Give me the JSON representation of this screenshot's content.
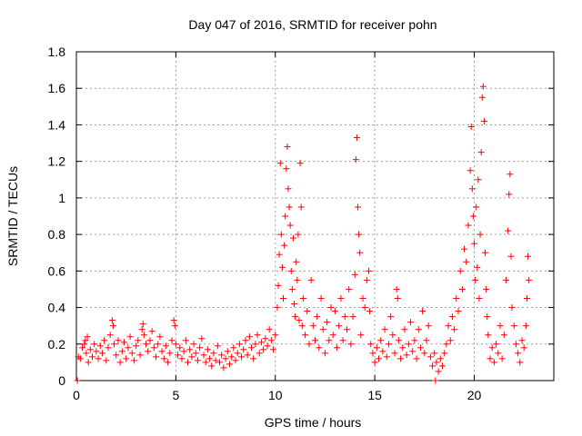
{
  "chart_data": {
    "type": "scatter",
    "title": "Day 047 of 2016, SRMTID for receiver pohn",
    "xlabel": "GPS time / hours",
    "ylabel": "SRMTID / TECUs",
    "xlim": [
      0,
      24
    ],
    "ylim": [
      0,
      1.8
    ],
    "xticks": [
      0,
      5,
      10,
      15,
      20
    ],
    "yticks": [
      0,
      0.2,
      0.4,
      0.6,
      0.8,
      1,
      1.2,
      1.4,
      1.6,
      1.8
    ],
    "ytick_labels": [
      "0",
      "0.2",
      "0.4",
      "0.6",
      "0.8",
      "1",
      "1.2",
      "1.4",
      "1.6",
      "1.8"
    ],
    "grid": true,
    "marker": "+",
    "series": [
      {
        "name": "SRMTID",
        "color": "#ff0000",
        "points": [
          [
            0.05,
            0.0
          ],
          [
            0.1,
            0.13
          ],
          [
            0.2,
            0.12
          ],
          [
            0.3,
            0.18
          ],
          [
            0.4,
            0.2
          ],
          [
            0.45,
            0.22
          ],
          [
            0.5,
            0.15
          ],
          [
            0.55,
            0.24
          ],
          [
            0.6,
            0.1
          ],
          [
            0.7,
            0.17
          ],
          [
            0.8,
            0.13
          ],
          [
            0.9,
            0.2
          ],
          [
            1.0,
            0.16
          ],
          [
            1.1,
            0.12
          ],
          [
            1.2,
            0.19
          ],
          [
            1.3,
            0.15
          ],
          [
            1.4,
            0.22
          ],
          [
            1.5,
            0.11
          ],
          [
            1.6,
            0.18
          ],
          [
            1.7,
            0.25
          ],
          [
            1.8,
            0.33
          ],
          [
            1.85,
            0.3
          ],
          [
            1.9,
            0.2
          ],
          [
            2.0,
            0.14
          ],
          [
            2.1,
            0.22
          ],
          [
            2.2,
            0.1
          ],
          [
            2.3,
            0.16
          ],
          [
            2.4,
            0.21
          ],
          [
            2.5,
            0.12
          ],
          [
            2.6,
            0.18
          ],
          [
            2.7,
            0.24
          ],
          [
            2.8,
            0.15
          ],
          [
            2.9,
            0.11
          ],
          [
            3.0,
            0.19
          ],
          [
            3.1,
            0.22
          ],
          [
            3.2,
            0.14
          ],
          [
            3.3,
            0.28
          ],
          [
            3.35,
            0.31
          ],
          [
            3.4,
            0.25
          ],
          [
            3.5,
            0.2
          ],
          [
            3.6,
            0.16
          ],
          [
            3.7,
            0.22
          ],
          [
            3.8,
            0.27
          ],
          [
            3.9,
            0.18
          ],
          [
            4.0,
            0.13
          ],
          [
            4.1,
            0.2
          ],
          [
            4.2,
            0.24
          ],
          [
            4.3,
            0.16
          ],
          [
            4.4,
            0.12
          ],
          [
            4.5,
            0.19
          ],
          [
            4.6,
            0.1
          ],
          [
            4.7,
            0.15
          ],
          [
            4.8,
            0.22
          ],
          [
            4.9,
            0.33
          ],
          [
            4.95,
            0.3
          ],
          [
            5.0,
            0.2
          ],
          [
            5.1,
            0.14
          ],
          [
            5.2,
            0.18
          ],
          [
            5.3,
            0.12
          ],
          [
            5.4,
            0.16
          ],
          [
            5.5,
            0.22
          ],
          [
            5.6,
            0.1
          ],
          [
            5.7,
            0.17
          ],
          [
            5.8,
            0.13
          ],
          [
            5.9,
            0.2
          ],
          [
            6.0,
            0.15
          ],
          [
            6.1,
            0.11
          ],
          [
            6.2,
            0.18
          ],
          [
            6.3,
            0.23
          ],
          [
            6.4,
            0.14
          ],
          [
            6.5,
            0.1
          ],
          [
            6.6,
            0.17
          ],
          [
            6.7,
            0.12
          ],
          [
            6.8,
            0.08
          ],
          [
            6.9,
            0.15
          ],
          [
            7.0,
            0.11
          ],
          [
            7.1,
            0.19
          ],
          [
            7.2,
            0.1
          ],
          [
            7.3,
            0.14
          ],
          [
            7.4,
            0.07
          ],
          [
            7.5,
            0.12
          ],
          [
            7.6,
            0.16
          ],
          [
            7.7,
            0.09
          ],
          [
            7.8,
            0.13
          ],
          [
            7.9,
            0.18
          ],
          [
            8.0,
            0.11
          ],
          [
            8.1,
            0.15
          ],
          [
            8.2,
            0.2
          ],
          [
            8.3,
            0.13
          ],
          [
            8.4,
            0.17
          ],
          [
            8.5,
            0.22
          ],
          [
            8.6,
            0.14
          ],
          [
            8.7,
            0.24
          ],
          [
            8.8,
            0.18
          ],
          [
            8.9,
            0.12
          ],
          [
            9.0,
            0.2
          ],
          [
            9.1,
            0.25
          ],
          [
            9.2,
            0.15
          ],
          [
            9.3,
            0.21
          ],
          [
            9.4,
            0.17
          ],
          [
            9.5,
            0.23
          ],
          [
            9.6,
            0.19
          ],
          [
            9.7,
            0.28
          ],
          [
            9.8,
            0.22
          ],
          [
            9.9,
            0.17
          ],
          [
            10.0,
            0.25
          ],
          [
            10.1,
            0.4
          ],
          [
            10.15,
            0.52
          ],
          [
            10.2,
            0.69
          ],
          [
            10.25,
            1.19
          ],
          [
            10.3,
            0.8
          ],
          [
            10.35,
            0.62
          ],
          [
            10.4,
            0.45
          ],
          [
            10.45,
            0.74
          ],
          [
            10.5,
            0.9
          ],
          [
            10.55,
            1.16
          ],
          [
            10.6,
            1.28
          ],
          [
            10.65,
            1.05
          ],
          [
            10.7,
            0.95
          ],
          [
            10.75,
            0.85
          ],
          [
            10.8,
            0.6
          ],
          [
            10.85,
            0.5
          ],
          [
            10.9,
            0.78
          ],
          [
            10.95,
            0.42
          ],
          [
            11.0,
            0.35
          ],
          [
            11.05,
            0.65
          ],
          [
            11.1,
            0.55
          ],
          [
            11.15,
            0.8
          ],
          [
            11.2,
            0.33
          ],
          [
            11.25,
            1.19
          ],
          [
            11.3,
            0.95
          ],
          [
            11.35,
            0.3
          ],
          [
            11.4,
            0.45
          ],
          [
            11.5,
            0.25
          ],
          [
            11.6,
            0.38
          ],
          [
            11.7,
            0.2
          ],
          [
            11.8,
            0.55
          ],
          [
            11.9,
            0.3
          ],
          [
            12.0,
            0.22
          ],
          [
            12.1,
            0.35
          ],
          [
            12.2,
            0.18
          ],
          [
            12.3,
            0.45
          ],
          [
            12.4,
            0.28
          ],
          [
            12.5,
            0.15
          ],
          [
            12.6,
            0.32
          ],
          [
            12.7,
            0.22
          ],
          [
            12.8,
            0.4
          ],
          [
            12.9,
            0.25
          ],
          [
            13.0,
            0.38
          ],
          [
            13.1,
            0.18
          ],
          [
            13.2,
            0.3
          ],
          [
            13.3,
            0.45
          ],
          [
            13.4,
            0.22
          ],
          [
            13.5,
            0.35
          ],
          [
            13.6,
            0.28
          ],
          [
            13.7,
            0.5
          ],
          [
            13.8,
            0.2
          ],
          [
            13.9,
            0.35
          ],
          [
            14.0,
            0.58
          ],
          [
            14.05,
            1.21
          ],
          [
            14.1,
            1.33
          ],
          [
            14.15,
            0.95
          ],
          [
            14.2,
            0.8
          ],
          [
            14.25,
            0.7
          ],
          [
            14.3,
            0.25
          ],
          [
            14.4,
            0.45
          ],
          [
            14.5,
            0.4
          ],
          [
            14.6,
            0.55
          ],
          [
            14.7,
            0.6
          ],
          [
            14.75,
            0.38
          ],
          [
            14.8,
            0.2
          ],
          [
            14.9,
            0.15
          ],
          [
            15.0,
            0.1
          ],
          [
            15.1,
            0.18
          ],
          [
            15.2,
            0.12
          ],
          [
            15.3,
            0.22
          ],
          [
            15.4,
            0.16
          ],
          [
            15.5,
            0.28
          ],
          [
            15.6,
            0.13
          ],
          [
            15.7,
            0.2
          ],
          [
            15.8,
            0.35
          ],
          [
            15.9,
            0.25
          ],
          [
            16.0,
            0.15
          ],
          [
            16.1,
            0.5
          ],
          [
            16.15,
            0.45
          ],
          [
            16.2,
            0.22
          ],
          [
            16.3,
            0.12
          ],
          [
            16.4,
            0.18
          ],
          [
            16.5,
            0.28
          ],
          [
            16.6,
            0.14
          ],
          [
            16.7,
            0.2
          ],
          [
            16.8,
            0.32
          ],
          [
            16.9,
            0.16
          ],
          [
            17.0,
            0.22
          ],
          [
            17.1,
            0.12
          ],
          [
            17.2,
            0.28
          ],
          [
            17.3,
            0.18
          ],
          [
            17.4,
            0.38
          ],
          [
            17.5,
            0.15
          ],
          [
            17.6,
            0.22
          ],
          [
            17.7,
            0.3
          ],
          [
            17.8,
            0.13
          ],
          [
            17.9,
            0.08
          ],
          [
            18.0,
            0.15
          ],
          [
            18.05,
            0.0
          ],
          [
            18.1,
            0.1
          ],
          [
            18.2,
            0.05
          ],
          [
            18.3,
            0.12
          ],
          [
            18.4,
            0.08
          ],
          [
            18.5,
            0.15
          ],
          [
            18.6,
            0.2
          ],
          [
            18.7,
            0.3
          ],
          [
            18.8,
            0.22
          ],
          [
            18.9,
            0.35
          ],
          [
            19.0,
            0.28
          ],
          [
            19.1,
            0.45
          ],
          [
            19.2,
            0.38
          ],
          [
            19.3,
            0.6
          ],
          [
            19.4,
            0.5
          ],
          [
            19.5,
            0.72
          ],
          [
            19.6,
            0.65
          ],
          [
            19.7,
            0.85
          ],
          [
            19.8,
            1.15
          ],
          [
            19.85,
            1.39
          ],
          [
            19.9,
            1.05
          ],
          [
            19.95,
            0.9
          ],
          [
            20.0,
            0.75
          ],
          [
            20.05,
            0.55
          ],
          [
            20.1,
            0.95
          ],
          [
            20.15,
            0.62
          ],
          [
            20.2,
            1.1
          ],
          [
            20.25,
            0.45
          ],
          [
            20.3,
            0.8
          ],
          [
            20.35,
            1.25
          ],
          [
            20.4,
            1.55
          ],
          [
            20.45,
            1.61
          ],
          [
            20.5,
            1.42
          ],
          [
            20.55,
            0.7
          ],
          [
            20.6,
            0.5
          ],
          [
            20.65,
            0.35
          ],
          [
            20.7,
            0.25
          ],
          [
            20.8,
            0.12
          ],
          [
            20.9,
            0.18
          ],
          [
            21.0,
            0.1
          ],
          [
            21.1,
            0.2
          ],
          [
            21.2,
            0.15
          ],
          [
            21.3,
            0.3
          ],
          [
            21.4,
            0.12
          ],
          [
            21.5,
            0.25
          ],
          [
            21.6,
            0.55
          ],
          [
            21.7,
            0.82
          ],
          [
            21.75,
            1.02
          ],
          [
            21.8,
            1.13
          ],
          [
            21.85,
            0.68
          ],
          [
            21.9,
            0.4
          ],
          [
            22.0,
            0.3
          ],
          [
            22.1,
            0.2
          ],
          [
            22.2,
            0.15
          ],
          [
            22.3,
            0.1
          ],
          [
            22.4,
            0.22
          ],
          [
            22.5,
            0.18
          ],
          [
            22.6,
            0.3
          ],
          [
            22.65,
            0.45
          ],
          [
            22.7,
            0.68
          ],
          [
            22.75,
            0.55
          ]
        ]
      }
    ]
  }
}
